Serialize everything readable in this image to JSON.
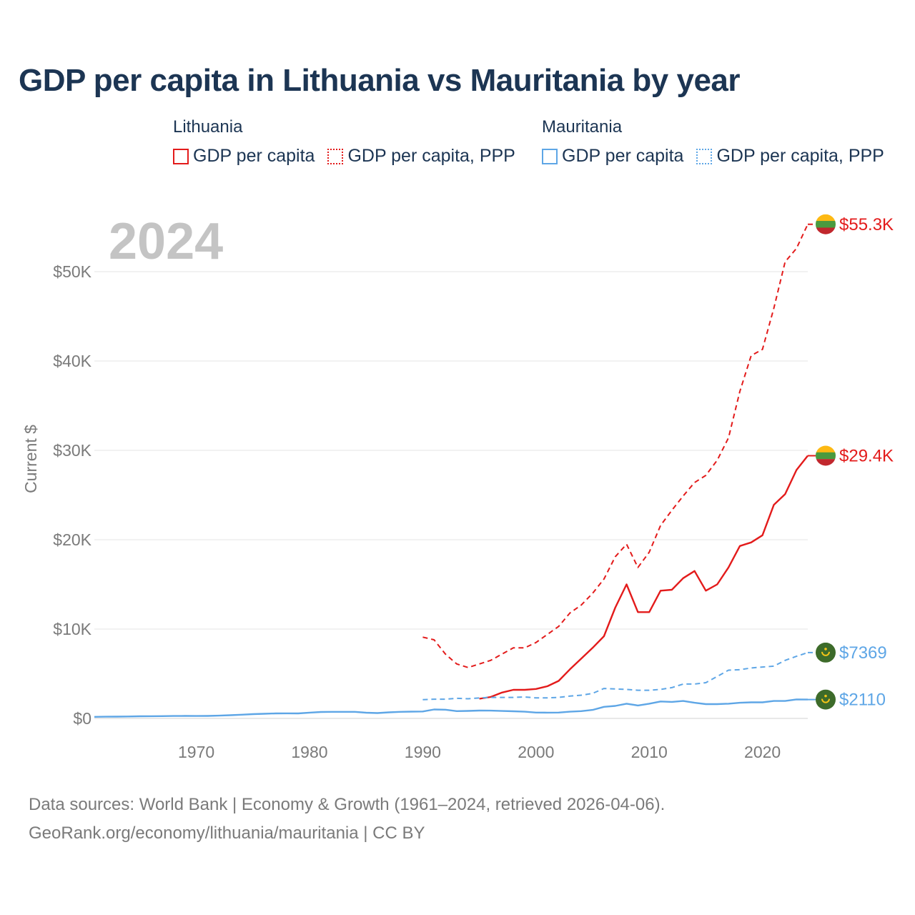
{
  "title": "GDP per capita in Lithuania vs Mauritania by year",
  "legend": {
    "groups": [
      {
        "country": "Lithuania",
        "color": "#e31b1b",
        "items": [
          {
            "label": "GDP per capita",
            "style": "solid"
          },
          {
            "label": "GDP per capita, PPP",
            "style": "dotted"
          }
        ]
      },
      {
        "country": "Mauritania",
        "color": "#5ea6e6",
        "items": [
          {
            "label": "GDP per capita",
            "style": "solid"
          },
          {
            "label": "GDP per capita, PPP",
            "style": "dotted"
          }
        ]
      }
    ]
  },
  "year_label": "2024",
  "source": {
    "line1": "Data sources: World Bank | Economy & Growth (1961–2024, retrieved 2026-04-06).",
    "line2": "GeoRank.org/economy/lithuania/mauritania | CC BY"
  },
  "chart_data": {
    "type": "line",
    "title": "GDP per capita in Lithuania vs Mauritania by year",
    "xlabel": "",
    "ylabel": "Current $",
    "xlim": [
      1961,
      2024
    ],
    "ylim": [
      0,
      56000
    ],
    "xticks": [
      1970,
      1980,
      1990,
      2000,
      2010,
      2020
    ],
    "yticks": [
      0,
      10000,
      20000,
      30000,
      40000,
      50000
    ],
    "ytick_labels": [
      "$0",
      "$10K",
      "$20K",
      "$30K",
      "$40K",
      "$50K"
    ],
    "grid": true,
    "series": [
      {
        "name": "Lithuania GDP per capita, PPP",
        "country": "Lithuania",
        "color": "#e31b1b",
        "dash": true,
        "end_label": "$55.3K",
        "flag": "lithuania",
        "x": [
          1990,
          1991,
          1992,
          1993,
          1994,
          1995,
          1996,
          1997,
          1998,
          1999,
          2000,
          2001,
          2002,
          2003,
          2004,
          2005,
          2006,
          2007,
          2008,
          2009,
          2010,
          2011,
          2012,
          2013,
          2014,
          2015,
          2016,
          2017,
          2018,
          2019,
          2020,
          2021,
          2022,
          2023,
          2024
        ],
        "values": [
          9100,
          8800,
          7200,
          6100,
          5700,
          6100,
          6500,
          7200,
          7900,
          7900,
          8500,
          9400,
          10300,
          11800,
          12700,
          14000,
          15600,
          18100,
          19500,
          16900,
          18600,
          21600,
          23300,
          24900,
          26400,
          27200,
          28900,
          31400,
          36600,
          40600,
          41300,
          45900,
          51100,
          52600,
          55300
        ]
      },
      {
        "name": "Lithuania GDP per capita",
        "country": "Lithuania",
        "color": "#e31b1b",
        "dash": false,
        "end_label": "$29.4K",
        "flag": "lithuania",
        "x": [
          1995,
          1996,
          1997,
          1998,
          1999,
          2000,
          2001,
          2002,
          2003,
          2004,
          2005,
          2006,
          2007,
          2008,
          2009,
          2010,
          2011,
          2012,
          2013,
          2014,
          2015,
          2016,
          2017,
          2018,
          2019,
          2020,
          2021,
          2022,
          2023,
          2024
        ],
        "values": [
          2200,
          2400,
          2900,
          3200,
          3200,
          3300,
          3600,
          4200,
          5500,
          6700,
          7900,
          9200,
          12400,
          15000,
          11900,
          11900,
          14300,
          14400,
          15700,
          16500,
          14300,
          15000,
          16900,
          19300,
          19700,
          20500,
          23900,
          25100,
          27800,
          29400
        ]
      },
      {
        "name": "Mauritania GDP per capita, PPP",
        "country": "Mauritania",
        "color": "#5ea6e6",
        "dash": true,
        "end_label": "$7369",
        "flag": "mauritania",
        "x": [
          1990,
          1991,
          1992,
          1993,
          1994,
          1995,
          1996,
          1997,
          1998,
          1999,
          2000,
          2001,
          2002,
          2003,
          2004,
          2005,
          2006,
          2007,
          2008,
          2009,
          2010,
          2011,
          2012,
          2013,
          2014,
          2015,
          2016,
          2017,
          2018,
          2019,
          2020,
          2021,
          2022,
          2023,
          2024
        ],
        "values": [
          2100,
          2150,
          2150,
          2250,
          2200,
          2300,
          2350,
          2350,
          2350,
          2400,
          2300,
          2300,
          2350,
          2500,
          2600,
          2800,
          3350,
          3300,
          3250,
          3150,
          3150,
          3250,
          3450,
          3850,
          3850,
          4000,
          4700,
          5400,
          5450,
          5650,
          5750,
          5850,
          6500,
          6950,
          7369
        ]
      },
      {
        "name": "Mauritania GDP per capita",
        "country": "Mauritania",
        "color": "#5ea6e6",
        "dash": false,
        "end_label": "$2110",
        "flag": "mauritania",
        "x": [
          1961,
          1962,
          1963,
          1964,
          1965,
          1966,
          1967,
          1968,
          1969,
          1970,
          1971,
          1972,
          1973,
          1974,
          1975,
          1976,
          1977,
          1978,
          1979,
          1980,
          1981,
          1982,
          1983,
          1984,
          1985,
          1986,
          1987,
          1988,
          1989,
          1990,
          1991,
          1992,
          1993,
          1994,
          1995,
          1996,
          1997,
          1998,
          1999,
          2000,
          2001,
          2002,
          2003,
          2004,
          2005,
          2006,
          2007,
          2008,
          2009,
          2010,
          2011,
          2012,
          2013,
          2014,
          2015,
          2016,
          2017,
          2018,
          2019,
          2020,
          2021,
          2022,
          2023,
          2024
        ],
        "values": [
          180,
          190,
          200,
          220,
          240,
          250,
          260,
          270,
          280,
          270,
          280,
          310,
          360,
          420,
          480,
          520,
          560,
          570,
          560,
          650,
          720,
          740,
          740,
          740,
          640,
          600,
          680,
          740,
          760,
          780,
          1000,
          980,
          820,
          840,
          880,
          870,
          830,
          800,
          750,
          660,
          650,
          660,
          750,
          820,
          950,
          1300,
          1400,
          1650,
          1450,
          1650,
          1900,
          1850,
          1950,
          1750,
          1600,
          1600,
          1650,
          1750,
          1800,
          1800,
          1950,
          1950,
          2130,
          2110
        ]
      }
    ]
  }
}
